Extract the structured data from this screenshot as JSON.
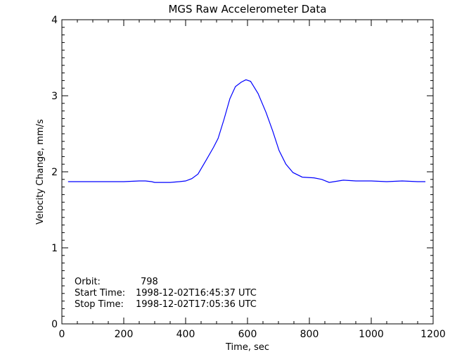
{
  "chart_data": {
    "type": "line",
    "title": "MGS Raw Accelerometer Data",
    "xlabel": "Time, sec",
    "ylabel": "Velocity Change, mm/s",
    "xlim": [
      0,
      1200
    ],
    "ylim": [
      0,
      4
    ],
    "xticks": [
      "0",
      "200",
      "400",
      "600",
      "800",
      "1000",
      "1200"
    ],
    "yticks": [
      "0",
      "1",
      "2",
      "3",
      "4"
    ],
    "grid": false,
    "line_color": "#0000ff",
    "annotations": [
      {
        "label": "Orbit:",
        "value": "798"
      },
      {
        "label": "Start Time:",
        "value": "1998-12-02T16:45:37 UTC"
      },
      {
        "label": "Stop Time:",
        "value": "1998-12-02T17:05:36 UTC"
      }
    ],
    "series": [
      {
        "x": [
          20,
          60,
          100,
          150,
          200,
          250,
          270,
          290,
          300,
          330,
          350,
          380,
          400,
          420,
          440,
          466,
          490,
          505,
          524,
          543,
          561,
          580,
          595,
          610,
          634,
          660,
          682,
          702,
          724,
          747,
          777,
          815,
          840,
          864,
          880,
          910,
          950,
          1000,
          1050,
          1100,
          1150,
          1175
        ],
        "y": [
          1.87,
          1.87,
          1.87,
          1.87,
          1.87,
          1.88,
          1.88,
          1.87,
          1.86,
          1.86,
          1.86,
          1.87,
          1.88,
          1.91,
          1.97,
          2.15,
          2.32,
          2.44,
          2.69,
          2.96,
          3.12,
          3.18,
          3.21,
          3.19,
          3.03,
          2.78,
          2.53,
          2.28,
          2.1,
          1.99,
          1.93,
          1.92,
          1.9,
          1.86,
          1.87,
          1.89,
          1.88,
          1.88,
          1.87,
          1.88,
          1.87,
          1.87
        ]
      }
    ]
  }
}
